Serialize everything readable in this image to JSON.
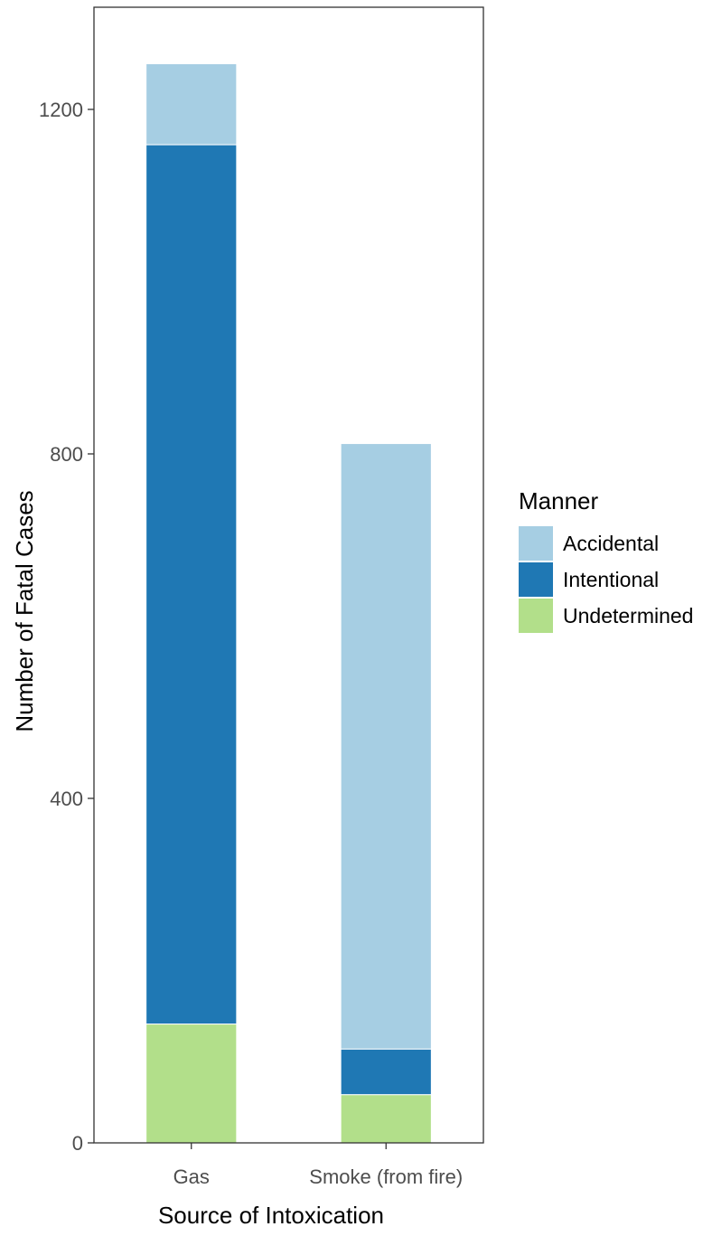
{
  "chart_data": {
    "type": "bar",
    "stacked": true,
    "categories": [
      "Gas",
      "Smoke (from fire)"
    ],
    "series": [
      {
        "name": "Undetermined",
        "color": "#b2df8a",
        "values": [
          138,
          56
        ]
      },
      {
        "name": "Intentional",
        "color": "#1f78b4",
        "values": [
          1021,
          53
        ]
      },
      {
        "name": "Accidental",
        "color": "#a6cee3",
        "values": [
          94,
          703
        ]
      }
    ],
    "xlabel": "Source of Intoxication",
    "ylabel": "Number of Fatal Cases",
    "ylim": [
      0,
      1320
    ],
    "yticks": [
      0,
      400,
      800,
      1200
    ],
    "ytick_labels": [
      "0",
      "400",
      "800",
      "1200"
    ],
    "grid": false,
    "legend": {
      "title": "Manner",
      "position": "right",
      "entries": [
        "Accidental",
        "Intentional",
        "Undetermined"
      ]
    }
  }
}
